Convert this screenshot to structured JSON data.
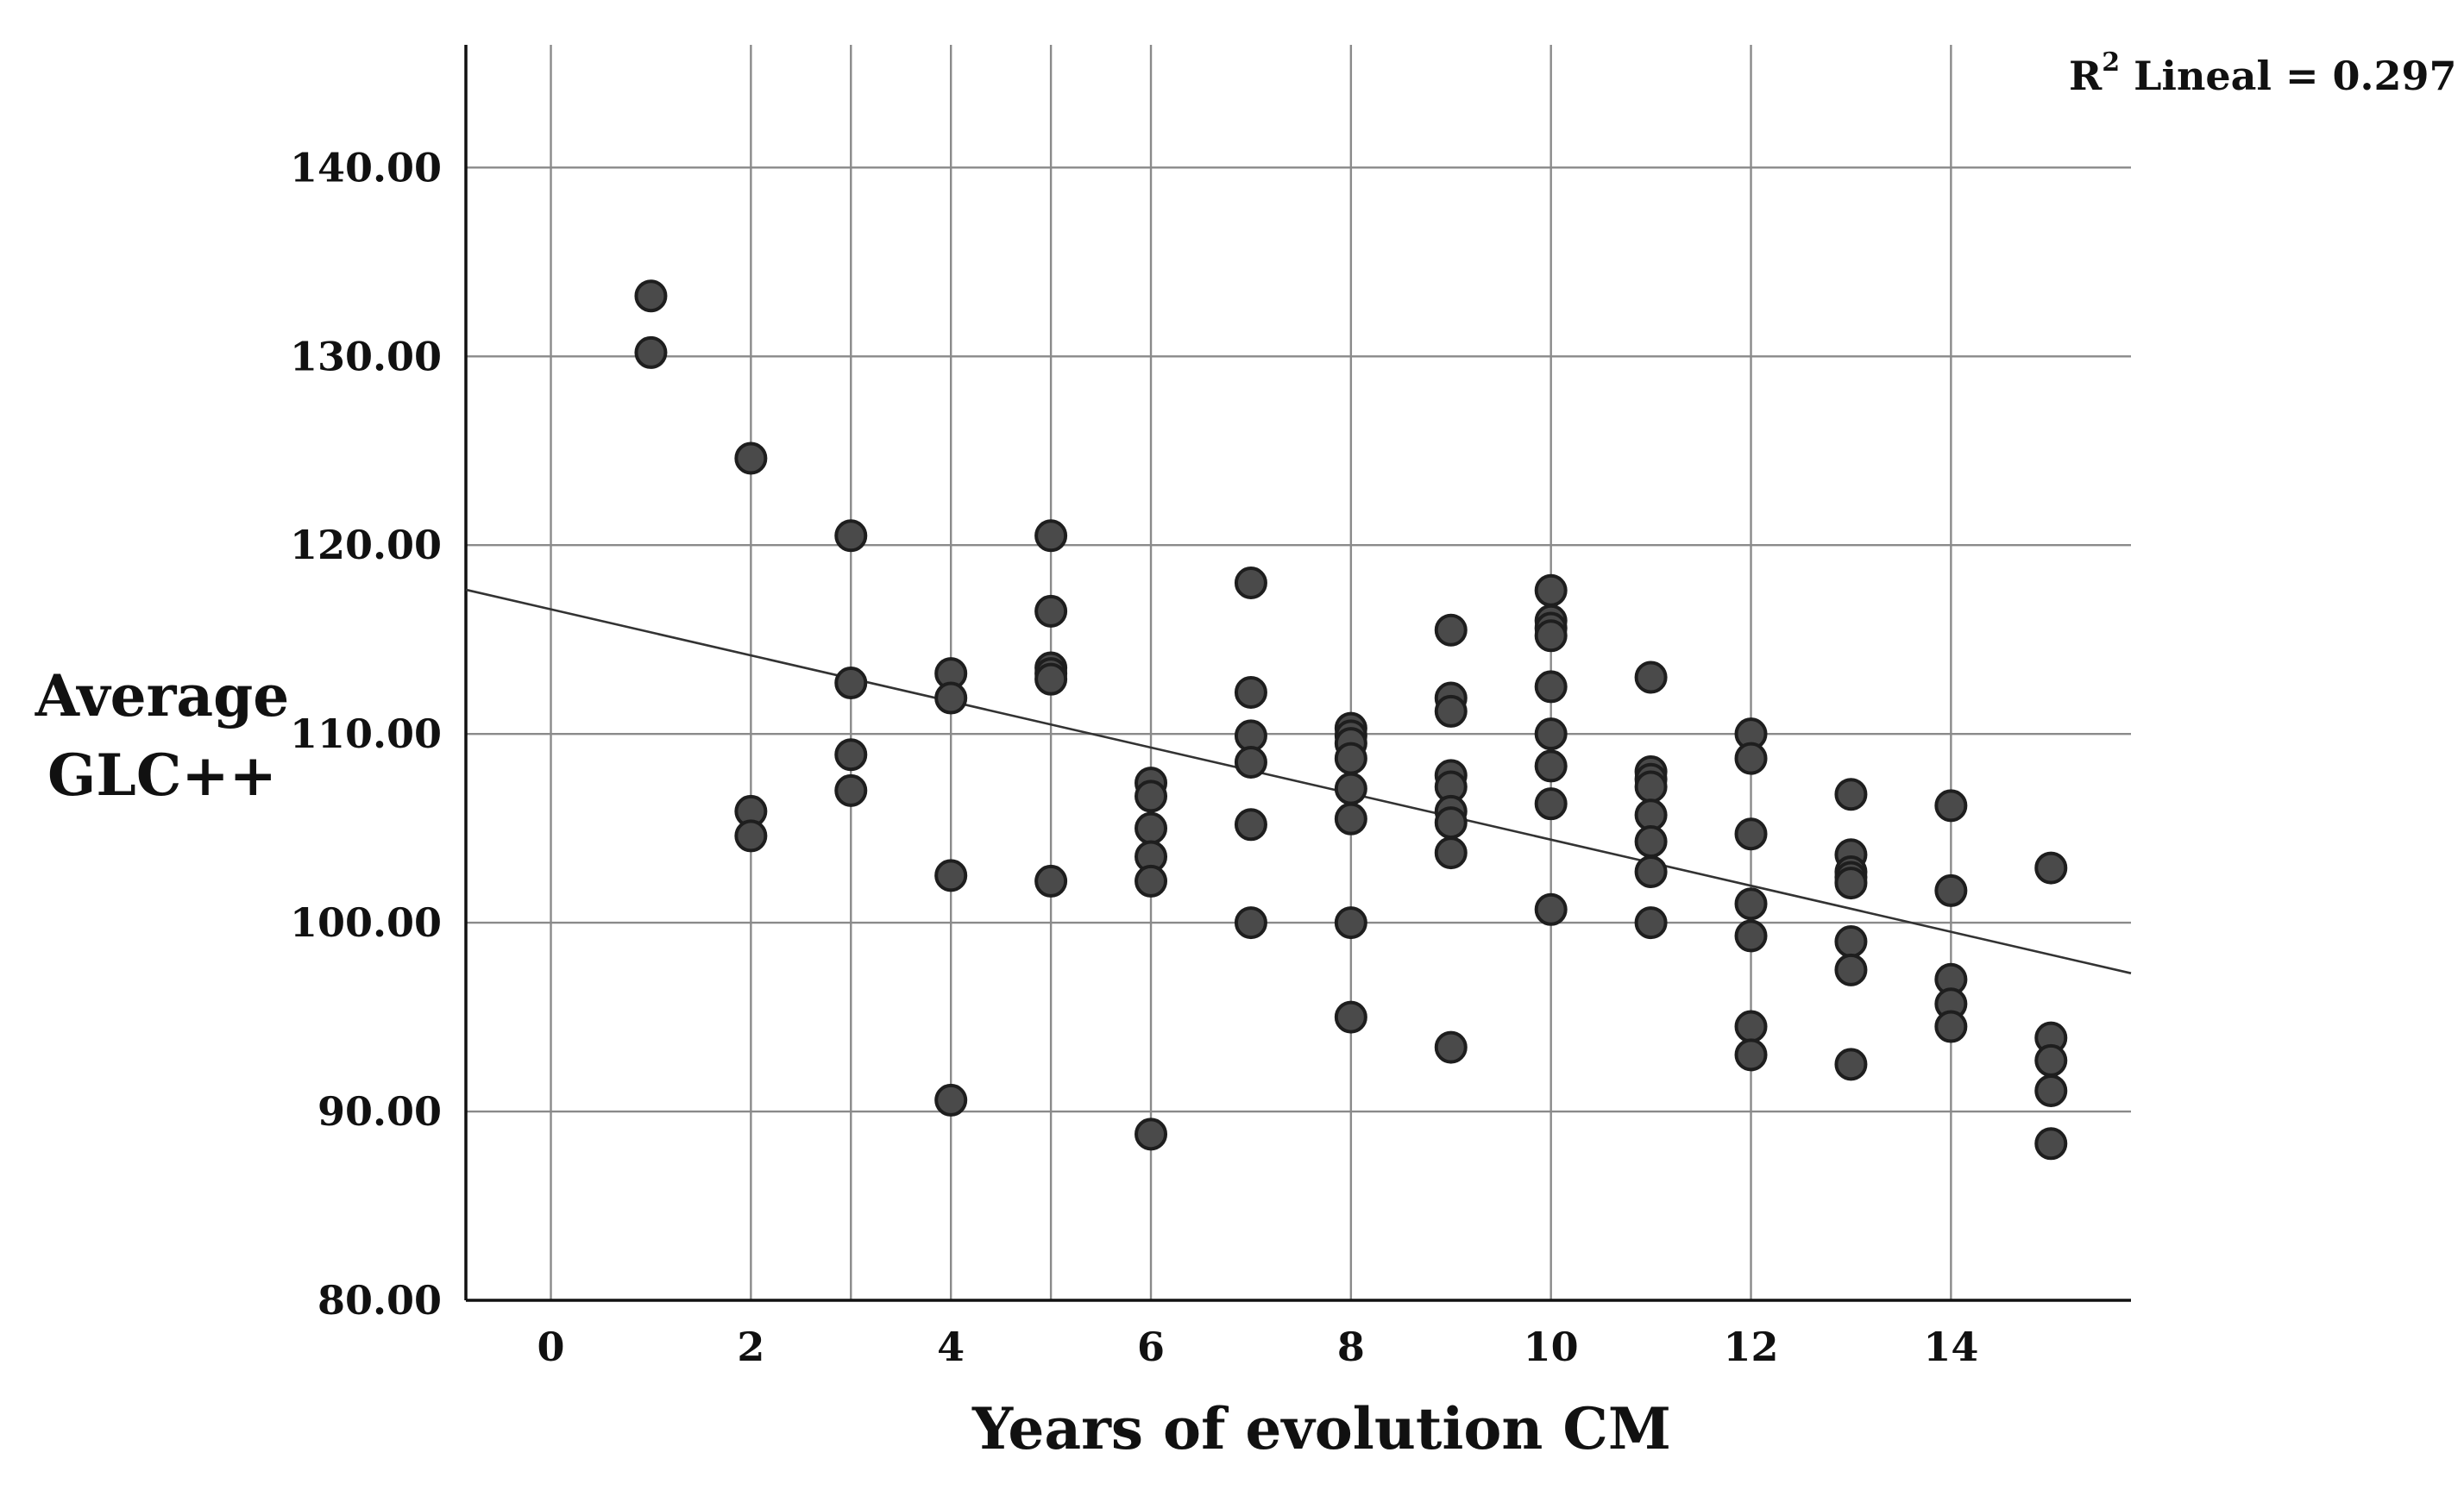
{
  "chart_data": {
    "type": "scatter",
    "title": "",
    "xlabel": "Years of evolution CM",
    "ylabel_lines": [
      "Average",
      "GLC++"
    ],
    "xlim": [
      -0.85,
      15.8
    ],
    "ylim": [
      80,
      146.5
    ],
    "x_ticks": [
      0,
      2,
      4,
      6,
      8,
      10,
      12,
      14
    ],
    "x_tick_labels": [
      "0",
      "2",
      "4",
      "6",
      "8",
      "10",
      "12",
      "14"
    ],
    "y_ticks": [
      80,
      90,
      100,
      110,
      120,
      130,
      140
    ],
    "y_tick_labels": [
      "80.00",
      "90.00",
      "100.00",
      "110.00",
      "120.00",
      "130.00",
      "140.00"
    ],
    "vertical_gridlines": [
      0,
      2,
      3,
      4,
      5,
      6,
      8,
      10,
      12,
      14
    ],
    "horizontal_gridlines": [
      90,
      100,
      110,
      120,
      130,
      140
    ],
    "grid": true,
    "annotation": {
      "prefix": "R",
      "sup": "2",
      "text": " Lineal = 0.297"
    },
    "fit_line": {
      "intercept": 116.6,
      "slope": -1.22
    },
    "points": [
      {
        "x": 1,
        "y": 133.2
      },
      {
        "x": 1,
        "y": 130.2
      },
      {
        "x": 2,
        "y": 124.6
      },
      {
        "x": 2,
        "y": 105.9
      },
      {
        "x": 2,
        "y": 104.6
      },
      {
        "x": 3,
        "y": 120.5
      },
      {
        "x": 3,
        "y": 112.7
      },
      {
        "x": 3,
        "y": 108.9
      },
      {
        "x": 3,
        "y": 107.0
      },
      {
        "x": 4,
        "y": 113.2
      },
      {
        "x": 4,
        "y": 111.9
      },
      {
        "x": 4,
        "y": 102.5
      },
      {
        "x": 4,
        "y": 90.6
      },
      {
        "x": 5,
        "y": 120.5
      },
      {
        "x": 5,
        "y": 116.5
      },
      {
        "x": 5,
        "y": 113.5
      },
      {
        "x": 5,
        "y": 113.2
      },
      {
        "x": 5,
        "y": 112.9
      },
      {
        "x": 5,
        "y": 102.2
      },
      {
        "x": 6,
        "y": 107.4
      },
      {
        "x": 6,
        "y": 106.7
      },
      {
        "x": 6,
        "y": 105.0
      },
      {
        "x": 6,
        "y": 103.5
      },
      {
        "x": 6,
        "y": 102.2
      },
      {
        "x": 6,
        "y": 88.8
      },
      {
        "x": 7,
        "y": 118.0
      },
      {
        "x": 7,
        "y": 112.2
      },
      {
        "x": 7,
        "y": 109.9
      },
      {
        "x": 7,
        "y": 108.5
      },
      {
        "x": 7,
        "y": 105.2
      },
      {
        "x": 7,
        "y": 100.0
      },
      {
        "x": 8,
        "y": 110.3
      },
      {
        "x": 8,
        "y": 109.9
      },
      {
        "x": 8,
        "y": 109.5
      },
      {
        "x": 8,
        "y": 108.7
      },
      {
        "x": 8,
        "y": 107.1
      },
      {
        "x": 8,
        "y": 105.5
      },
      {
        "x": 8,
        "y": 100.0
      },
      {
        "x": 8,
        "y": 95.0
      },
      {
        "x": 9,
        "y": 115.5
      },
      {
        "x": 9,
        "y": 111.9
      },
      {
        "x": 9,
        "y": 111.2
      },
      {
        "x": 9,
        "y": 107.8
      },
      {
        "x": 9,
        "y": 107.2
      },
      {
        "x": 9,
        "y": 105.9
      },
      {
        "x": 9,
        "y": 105.3
      },
      {
        "x": 9,
        "y": 103.7
      },
      {
        "x": 9,
        "y": 93.4
      },
      {
        "x": 10,
        "y": 117.6
      },
      {
        "x": 10,
        "y": 116.0
      },
      {
        "x": 10,
        "y": 115.6
      },
      {
        "x": 10,
        "y": 115.2
      },
      {
        "x": 10,
        "y": 112.5
      },
      {
        "x": 10,
        "y": 110.0
      },
      {
        "x": 10,
        "y": 108.3
      },
      {
        "x": 10,
        "y": 106.3
      },
      {
        "x": 10,
        "y": 100.7
      },
      {
        "x": 11,
        "y": 113.0
      },
      {
        "x": 11,
        "y": 108.0
      },
      {
        "x": 11,
        "y": 107.6
      },
      {
        "x": 11,
        "y": 107.2
      },
      {
        "x": 11,
        "y": 105.7
      },
      {
        "x": 11,
        "y": 104.3
      },
      {
        "x": 11,
        "y": 102.7
      },
      {
        "x": 11,
        "y": 100.0
      },
      {
        "x": 12,
        "y": 110.0
      },
      {
        "x": 12,
        "y": 108.7
      },
      {
        "x": 12,
        "y": 104.7
      },
      {
        "x": 12,
        "y": 101.0
      },
      {
        "x": 12,
        "y": 99.3
      },
      {
        "x": 12,
        "y": 94.5
      },
      {
        "x": 12,
        "y": 93.0
      },
      {
        "x": 13,
        "y": 106.8
      },
      {
        "x": 13,
        "y": 103.6
      },
      {
        "x": 13,
        "y": 102.7
      },
      {
        "x": 13,
        "y": 102.4
      },
      {
        "x": 13,
        "y": 102.1
      },
      {
        "x": 13,
        "y": 99.0
      },
      {
        "x": 13,
        "y": 97.5
      },
      {
        "x": 13,
        "y": 92.5
      },
      {
        "x": 14,
        "y": 106.2
      },
      {
        "x": 14,
        "y": 101.7
      },
      {
        "x": 14,
        "y": 97.0
      },
      {
        "x": 14,
        "y": 95.7
      },
      {
        "x": 14,
        "y": 94.5
      },
      {
        "x": 15,
        "y": 102.9
      },
      {
        "x": 15,
        "y": 93.9
      },
      {
        "x": 15,
        "y": 92.7
      },
      {
        "x": 15,
        "y": 91.1
      },
      {
        "x": 15,
        "y": 88.3
      }
    ]
  }
}
